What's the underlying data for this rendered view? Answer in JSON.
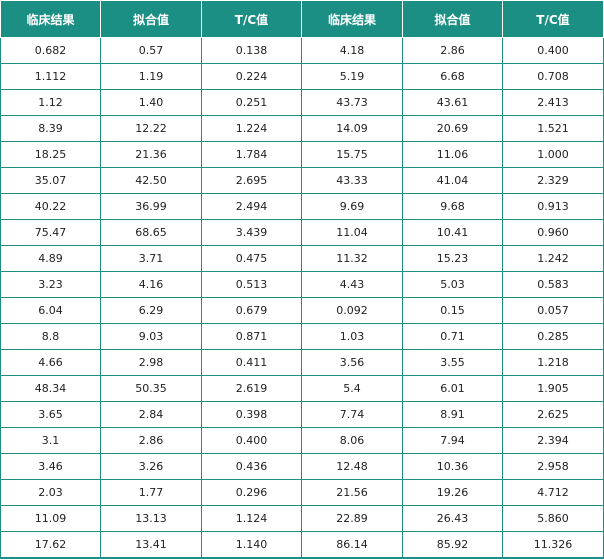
{
  "table": {
    "headers": [
      "临床结果",
      "拟合值",
      "T/C值",
      "临床结果",
      "拟合值",
      "T/C值"
    ],
    "header_bg": "#1b8f84",
    "rows": [
      [
        "0.682",
        "0.57",
        "0.138",
        "4.18",
        "2.86",
        "0.400"
      ],
      [
        "1.112",
        "1.19",
        "0.224",
        "5.19",
        "6.68",
        "0.708"
      ],
      [
        "1.12",
        "1.40",
        "0.251",
        "43.73",
        "43.61",
        "2.413"
      ],
      [
        "8.39",
        "12.22",
        "1.224",
        "14.09",
        "20.69",
        "1.521"
      ],
      [
        "18.25",
        "21.36",
        "1.784",
        "15.75",
        "11.06",
        "1.000"
      ],
      [
        "35.07",
        "42.50",
        "2.695",
        "43.33",
        "41.04",
        "2.329"
      ],
      [
        "40.22",
        "36.99",
        "2.494",
        "9.69",
        "9.68",
        "0.913"
      ],
      [
        "75.47",
        "68.65",
        "3.439",
        "11.04",
        "10.41",
        "0.960"
      ],
      [
        "4.89",
        "3.71",
        "0.475",
        "11.32",
        "15.23",
        "1.242"
      ],
      [
        "3.23",
        "4.16",
        "0.513",
        "4.43",
        "5.03",
        "0.583"
      ],
      [
        "6.04",
        "6.29",
        "0.679",
        "0.092",
        "0.15",
        "0.057"
      ],
      [
        "8.8",
        "9.03",
        "0.871",
        "1.03",
        "0.71",
        "0.285"
      ],
      [
        "4.66",
        "2.98",
        "0.411",
        "3.56",
        "3.55",
        "1.218"
      ],
      [
        "48.34",
        "50.35",
        "2.619",
        "5.4",
        "6.01",
        "1.905"
      ],
      [
        "3.65",
        "2.84",
        "0.398",
        "7.74",
        "8.91",
        "2.625"
      ],
      [
        "3.1",
        "2.86",
        "0.400",
        "8.06",
        "7.94",
        "2.394"
      ],
      [
        "3.46",
        "3.26",
        "0.436",
        "12.48",
        "10.36",
        "2.958"
      ],
      [
        "2.03",
        "1.77",
        "0.296",
        "21.56",
        "19.26",
        "4.712"
      ],
      [
        "11.09",
        "13.13",
        "1.124",
        "22.89",
        "26.43",
        "5.860"
      ],
      [
        "17.62",
        "13.41",
        "1.140",
        "86.14",
        "85.92",
        "11.326"
      ]
    ]
  }
}
